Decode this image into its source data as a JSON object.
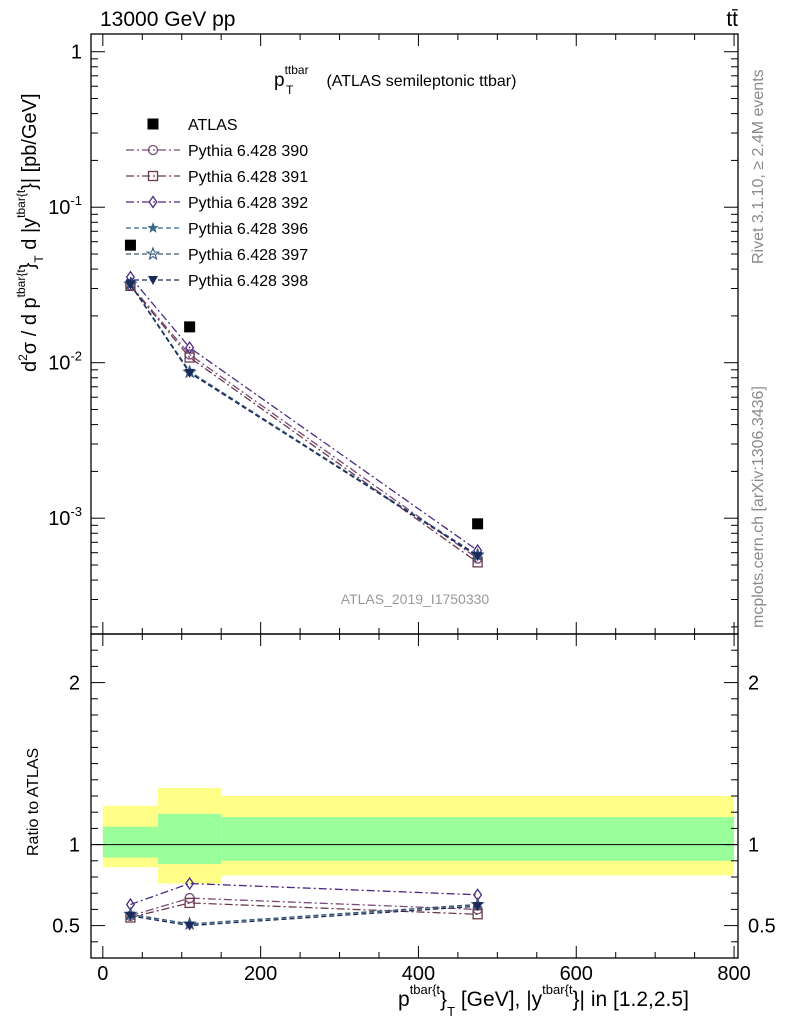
{
  "header": {
    "left": "13000 GeV pp",
    "right": "tt̄"
  },
  "side_labels": {
    "rivet": "Rivet 3.1.10, ≥ 2.4M events",
    "mcplots": "mcplots.cern.ch [arXiv:1306.3436]"
  },
  "watermark": "ATLAS_2019_I1750330",
  "plot_title": {
    "main": "p",
    "sup": "ttbar",
    "sub": "T",
    "rest": " (ATLAS semileptonic ttbar)"
  },
  "ylabel_main": {
    "parts": [
      "d",
      "2",
      "σ / d p",
      "tbar{t",
      "}",
      "T",
      " d |y",
      "tbar{t",
      "}| [pb/GeV]"
    ]
  },
  "ylabel_ratio": "Ratio to ATLAS",
  "xlabel": {
    "parts": [
      "p",
      "tbar{t",
      "}",
      "T",
      " [GeV], |y",
      "tbar{t",
      "}| in [1.2,2.5]"
    ]
  },
  "chart_data": {
    "type": "scatter",
    "main": {
      "yscale": "log",
      "ylim": [
        0.00018,
        1.3
      ],
      "y_ticks": [
        "1",
        "10^-1",
        "10^-2",
        "10^-3"
      ],
      "legend_placement": "upper-left"
    },
    "ratio": {
      "ylim": [
        0.3,
        2.3
      ],
      "y_ticks": [
        "0.5",
        "1",
        "2"
      ],
      "reference_line": 1
    },
    "xlim": [
      -15,
      805
    ],
    "x_ticks": [
      "0",
      "200",
      "400",
      "600",
      "800"
    ],
    "bins": [
      {
        "lo": 0,
        "hi": 70,
        "x": 35
      },
      {
        "lo": 70,
        "hi": 150,
        "x": 110
      },
      {
        "lo": 150,
        "hi": 800,
        "x": 475
      }
    ],
    "data": {
      "name": "ATLAS",
      "color": "#000000",
      "marker": "filled-square",
      "values": [
        0.057,
        0.017,
        0.00092
      ]
    },
    "bands": {
      "stat": {
        "color": "#9aff9a",
        "lo": [
          0.92,
          0.88,
          0.9
        ],
        "hi": [
          1.11,
          1.19,
          1.17
        ]
      },
      "total": {
        "color": "#ffff88",
        "lo": [
          0.86,
          0.76,
          0.81
        ],
        "hi": [
          1.24,
          1.35,
          1.3
        ]
      }
    },
    "series": [
      {
        "name": "Pythia 6.428 390",
        "color": "#7a4a7a",
        "marker": "open-circle",
        "dash": "8,3,2,3",
        "values": [
          0.0315,
          0.0113,
          0.00055
        ],
        "ratio": [
          0.56,
          0.67,
          0.6
        ]
      },
      {
        "name": "Pythia 6.428 391",
        "color": "#6b3a4a",
        "marker": "open-square",
        "dash": "8,3,2,3",
        "values": [
          0.0312,
          0.0108,
          0.00052
        ],
        "ratio": [
          0.55,
          0.64,
          0.57
        ]
      },
      {
        "name": "Pythia 6.428 392",
        "color": "#4b2a80",
        "marker": "open-diamond",
        "dash": "8,3,2,3",
        "values": [
          0.0355,
          0.0125,
          0.00062
        ],
        "ratio": [
          0.63,
          0.76,
          0.69
        ]
      },
      {
        "name": "Pythia 6.428 396",
        "color": "#3a6a8a",
        "marker": "filled-star",
        "dash": "5,3",
        "values": [
          0.032,
          0.0088,
          0.00057
        ],
        "ratio": [
          0.57,
          0.51,
          0.63
        ]
      },
      {
        "name": "Pythia 6.428 397",
        "color": "#3a5a7a",
        "marker": "open-star",
        "dash": "5,3",
        "values": [
          0.032,
          0.0087,
          0.00058
        ],
        "ratio": [
          0.57,
          0.51,
          0.63
        ]
      },
      {
        "name": "Pythia 6.428 398",
        "color": "#1a2a5a",
        "marker": "filled-triangle-down",
        "dash": "5,3",
        "values": [
          0.0318,
          0.0086,
          0.00057
        ],
        "ratio": [
          0.56,
          0.5,
          0.62
        ]
      }
    ]
  }
}
